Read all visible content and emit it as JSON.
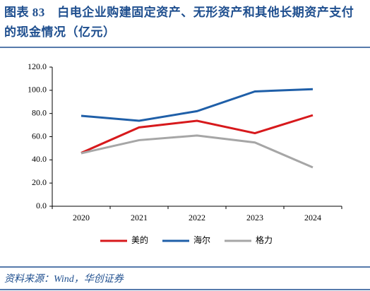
{
  "chart_data": {
    "type": "line",
    "title": "图表 83　白电企业购建固定资产、无形资产和其他长期资产支付的现金情况（亿元）",
    "source": "资料来源：Wind，华创证券",
    "categories": [
      "2020",
      "2021",
      "2022",
      "2023",
      "2024"
    ],
    "series": [
      {
        "name": "美的",
        "color": "#d7191c",
        "values": [
          46,
          68,
          73.7,
          63,
          78.5
        ]
      },
      {
        "name": "海尔",
        "color": "#1f5fa8",
        "values": [
          78,
          73.7,
          82,
          99,
          101
        ]
      },
      {
        "name": "格力",
        "color": "#a6a6a6",
        "values": [
          45.7,
          57,
          61,
          55,
          33.5
        ]
      }
    ],
    "ylim": [
      0,
      120
    ],
    "yticks": [
      {
        "value": 0,
        "label": "0.0"
      },
      {
        "value": 20,
        "label": "20.0"
      },
      {
        "value": 40,
        "label": "40.0"
      },
      {
        "value": 60,
        "label": "60.0"
      },
      {
        "value": 80,
        "label": "80.0"
      },
      {
        "value": 100,
        "label": "100.0"
      },
      {
        "value": 120,
        "label": "120.0"
      }
    ],
    "grid": false,
    "legend": "bottom"
  }
}
